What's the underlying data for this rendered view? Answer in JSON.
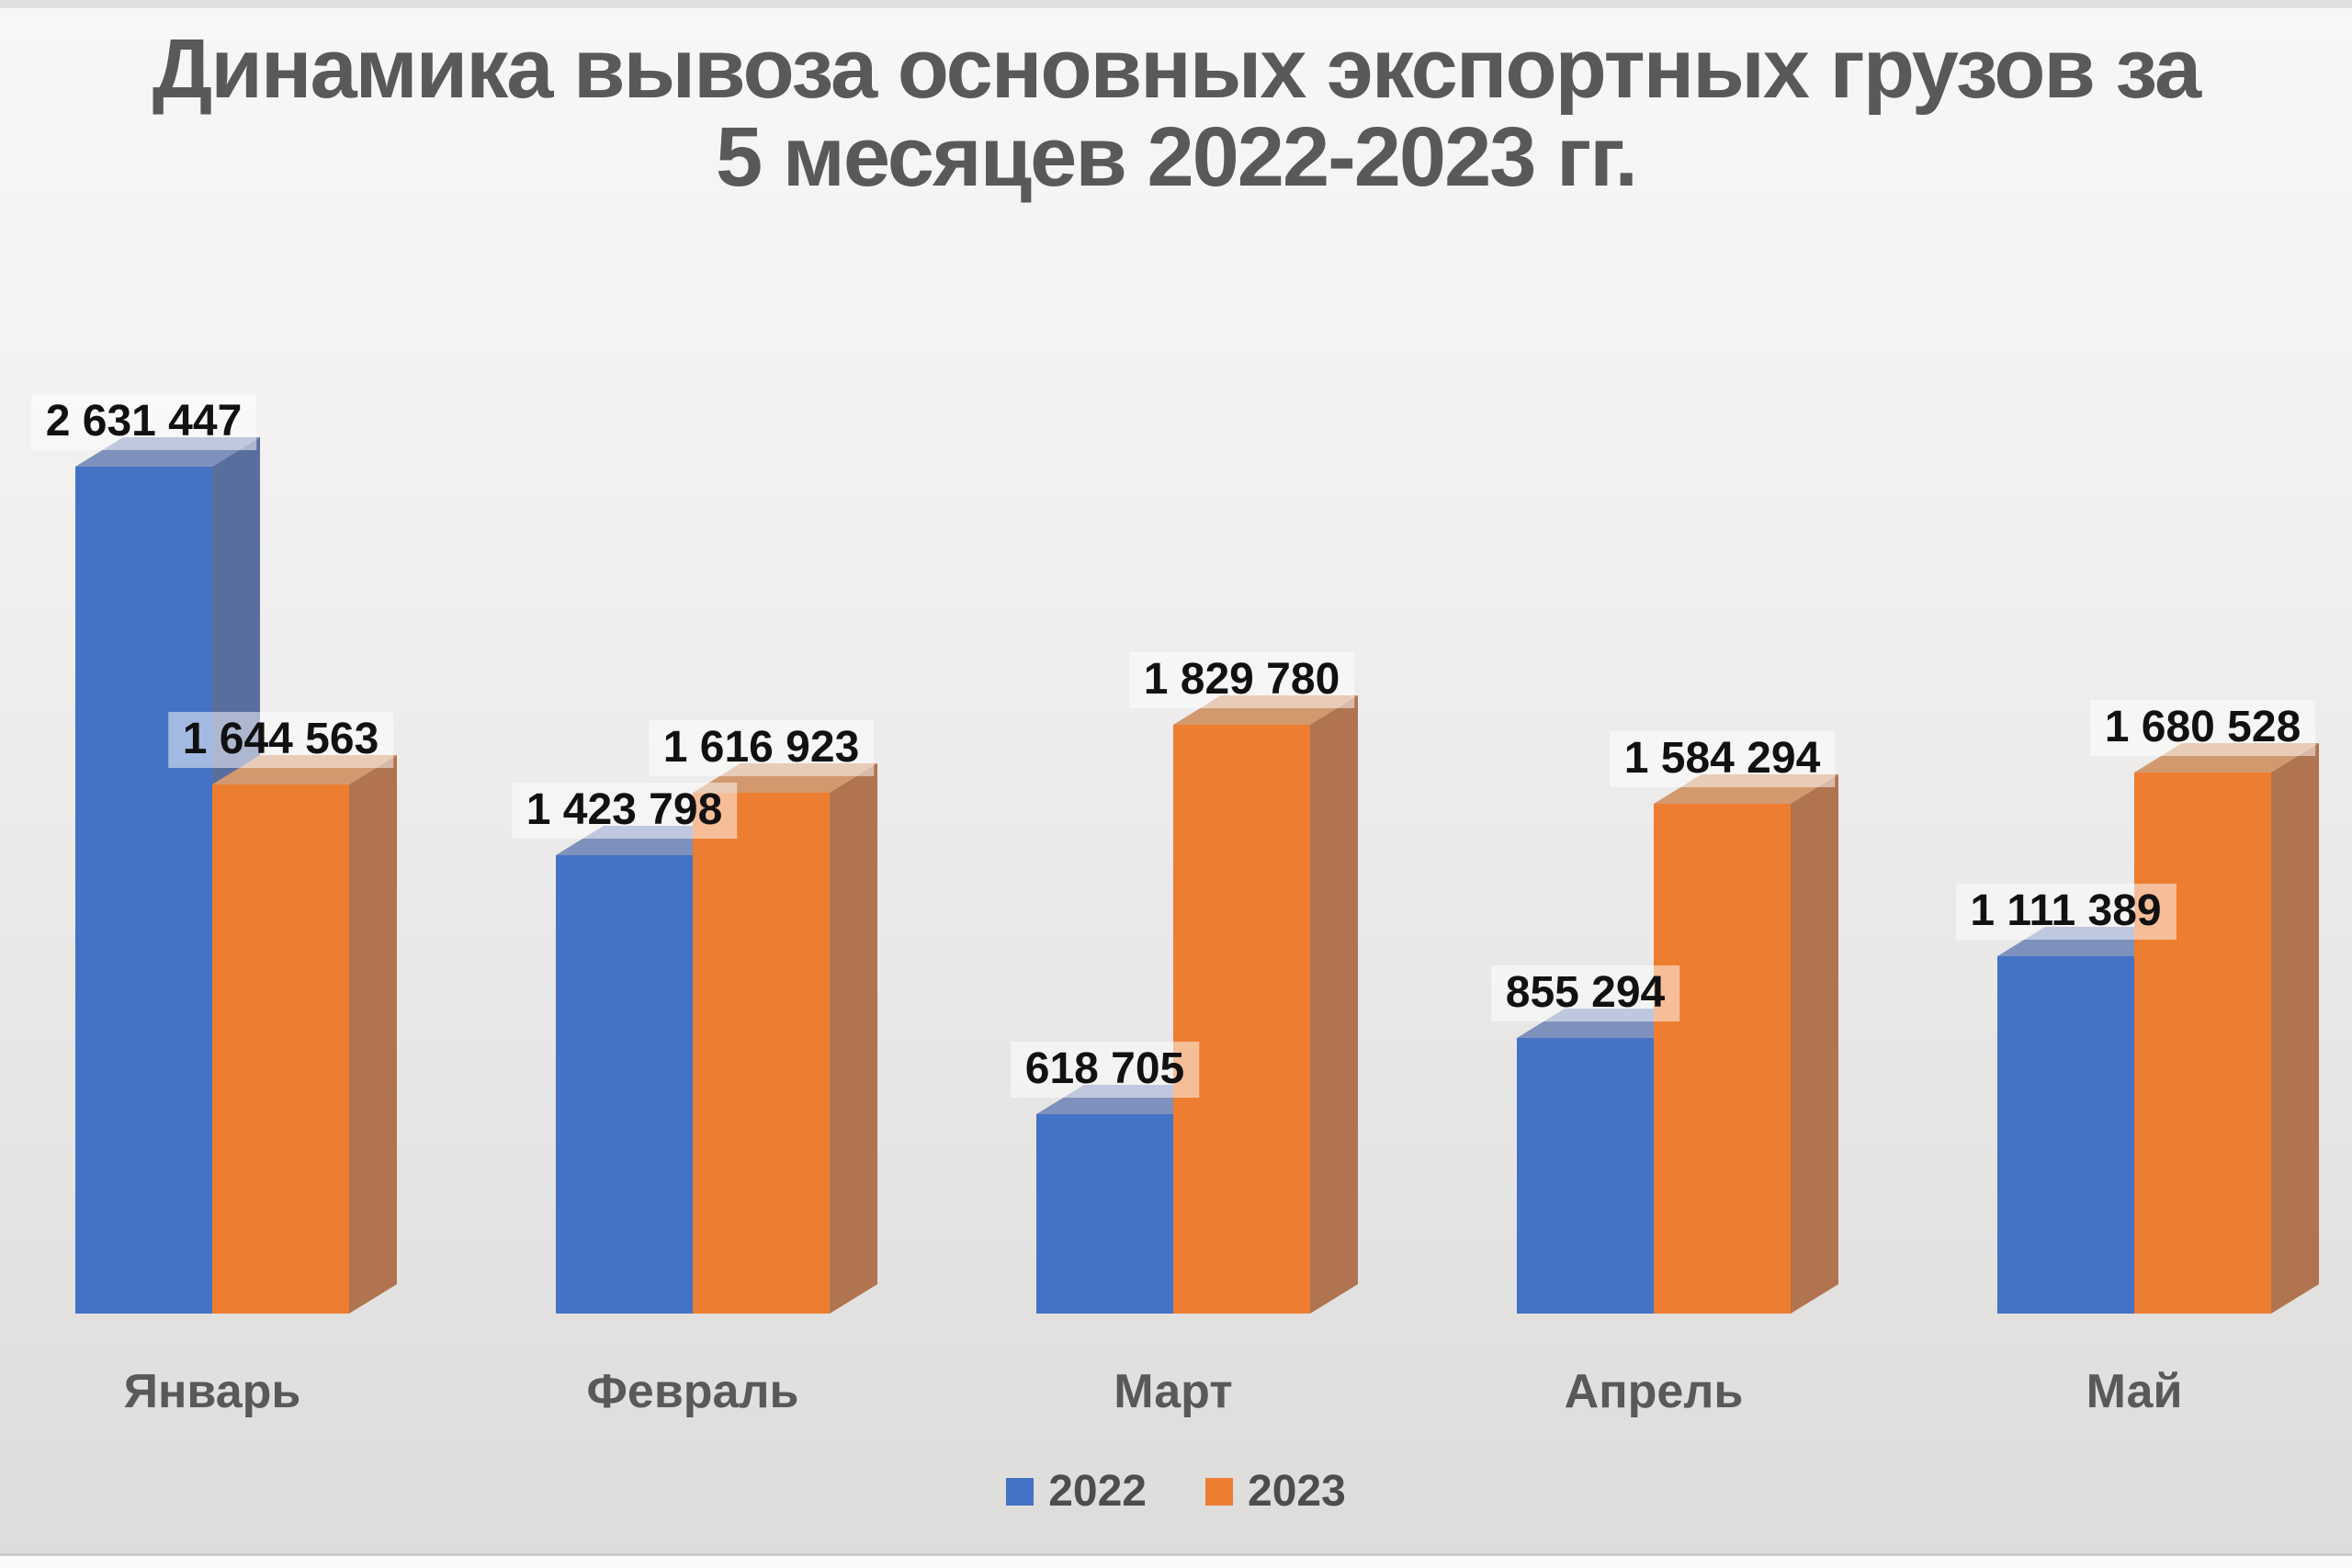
{
  "title": {
    "line1": "Динамика вывоза основных экспортных грузов за",
    "line2": "5 месяцев 2022-2023 гг."
  },
  "chart_data": {
    "type": "bar",
    "style_3d": true,
    "title": "Динамика вывоза основных экспортных грузов за 5 месяцев 2022-2023 гг.",
    "categories": [
      "Январь",
      "Февраль",
      "Март",
      "Апрель",
      "Май"
    ],
    "series": [
      {
        "name": "2022",
        "color": "#4472C4",
        "color_top": "#7E91BC",
        "color_side": "#5A6E9E",
        "values": [
          2631447,
          1423798,
          618705,
          855294,
          1111389
        ],
        "value_labels": [
          "2 631 447",
          "1 423 798",
          "618 705",
          "855 294",
          "1 111 389"
        ]
      },
      {
        "name": "2023",
        "color": "#ED7D31",
        "color_top": "#D2996F",
        "color_side": "#B07450",
        "values": [
          1644563,
          1616923,
          1829780,
          1584294,
          1680528
        ],
        "value_labels": [
          "1 644 563",
          "1 616 923",
          "1 829 780",
          "1 584 294",
          "1 680 528"
        ]
      }
    ],
    "legend_position": "bottom",
    "grid": false,
    "value_axis": "hidden",
    "data_label_background": "rgba(255,255,255,0.5)"
  },
  "colors": {
    "title": "#595959",
    "category_labels": "#595959",
    "legend_text": "#4d4d4d",
    "data_label_text": "#111111",
    "background_top": "#f8f7f6",
    "background_bottom": "#dddcdb"
  }
}
